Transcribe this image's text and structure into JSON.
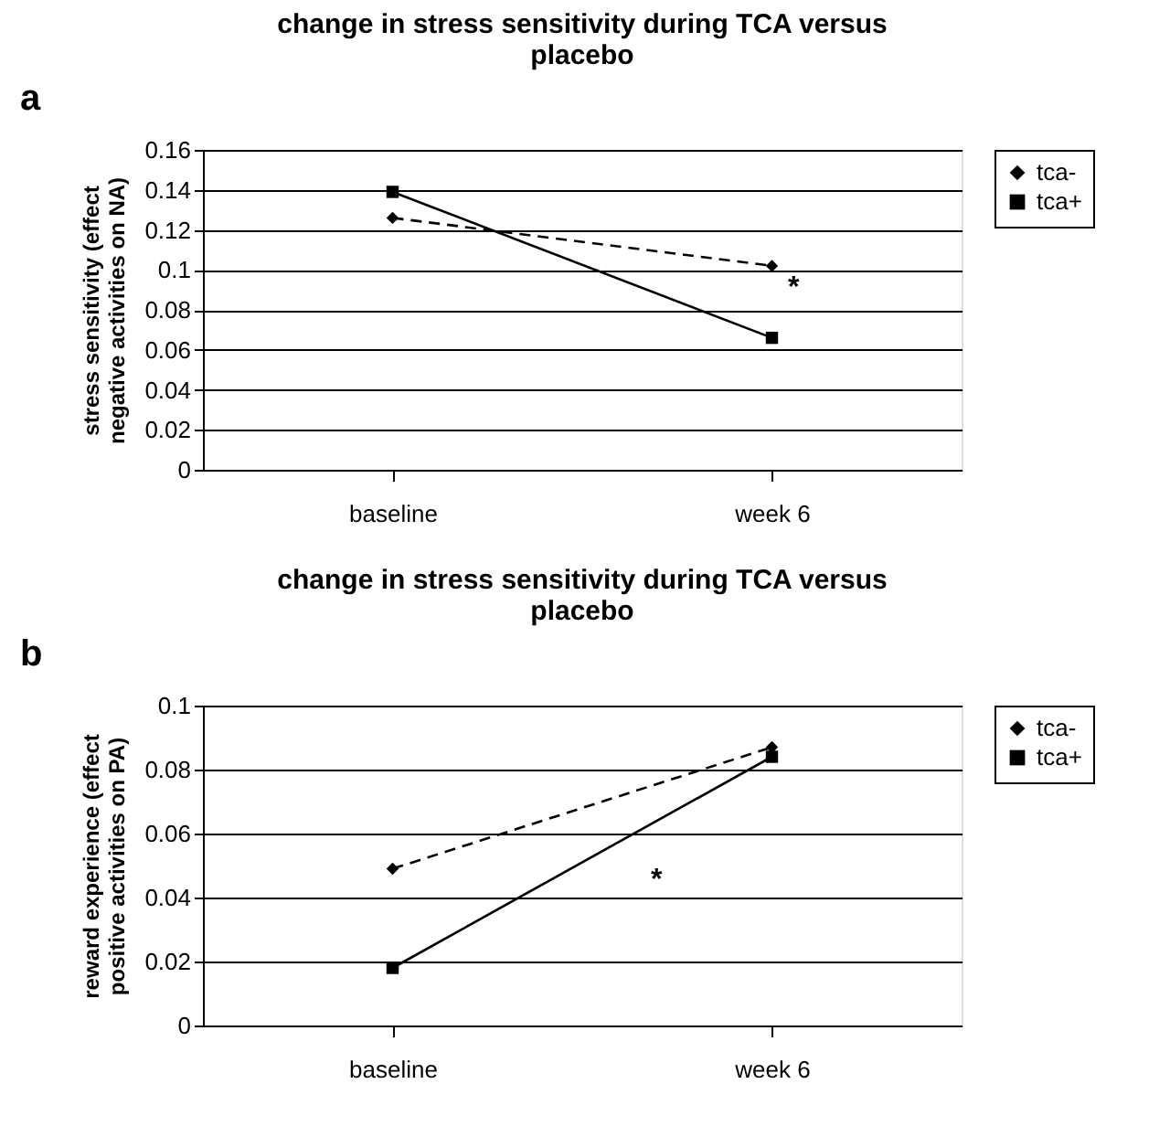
{
  "chart_data": [
    {
      "type": "line",
      "title": [
        "change in stress sensitivity during TCA versus",
        "placebo"
      ],
      "ylabel": [
        "stress sensitivity (effect",
        "negative activities on NA)"
      ],
      "categories": [
        "baseline",
        "week 6"
      ],
      "series": [
        {
          "name": "tca-",
          "color": "#000000",
          "values": [
            0.126,
            0.102
          ],
          "marker": "diamond",
          "line_style": "dashed"
        },
        {
          "name": "tca+",
          "color": "#000000",
          "values": [
            0.139,
            0.066
          ],
          "marker": "square",
          "line_style": "solid"
        }
      ],
      "ylim": [
        0,
        0.16
      ],
      "yticks": [
        0,
        0.02,
        0.04,
        0.06,
        0.08,
        0.1,
        0.12,
        0.14,
        0.16
      ],
      "grid": "y",
      "legend": "right",
      "annotations": [
        "a",
        "*"
      ]
    },
    {
      "type": "line",
      "title": [
        "change in stress sensitivity during TCA versus",
        "placebo"
      ],
      "ylabel": [
        "reward experience (effect",
        "positive activities on PA)"
      ],
      "categories": [
        "baseline",
        "week 6"
      ],
      "series": [
        {
          "name": "tca-",
          "color": "#000000",
          "values": [
            0.049,
            0.087
          ],
          "marker": "diamond",
          "line_style": "dashed"
        },
        {
          "name": "tca+",
          "color": "#000000",
          "values": [
            0.018,
            0.084
          ],
          "marker": "square",
          "line_style": "solid"
        }
      ],
      "ylim": [
        0,
        0.1
      ],
      "yticks": [
        0,
        0.02,
        0.04,
        0.06,
        0.08,
        0.1
      ],
      "grid": "y",
      "legend": "right",
      "annotations": [
        "b",
        "*"
      ]
    }
  ]
}
